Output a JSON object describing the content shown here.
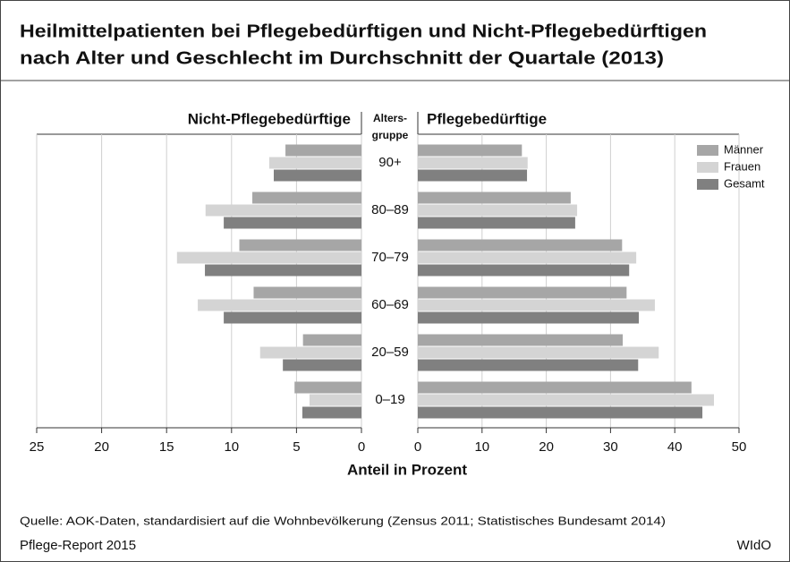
{
  "title": [
    "Heilmittelpatienten bei Pflegebedürftigen und Nicht-Pflegebedürftigen",
    "nach Alter und Geschlecht im Durchschnitt der Quartale (2013)"
  ],
  "category_header": [
    "Alters-",
    "gruppe"
  ],
  "categories": [
    "90+",
    "80–89",
    "70–79",
    "60–69",
    "20–59",
    "0–19"
  ],
  "xlabel": "Anteil in Prozent",
  "source": "Quelle: AOK-Daten, standardisiert auf die Wohnbevölkerung (Zensus 2011; Statistisches Bundesamt 2014)",
  "footer_left": "Pflege-Report 2015",
  "footer_right": "WIdO",
  "chart_data": [
    {
      "type": "bar",
      "orientation": "horizontal",
      "title": "Nicht-Pflegebedürftige",
      "xlim": [
        25,
        0
      ],
      "xticks": [
        25,
        20,
        15,
        10,
        5,
        0
      ],
      "grid": true,
      "series": [
        {
          "color": "#a6a6a6",
          "values": [
            5.85,
            8.4,
            9.4,
            8.3,
            4.5,
            5.15
          ]
        },
        {
          "color": "#d4d4d4",
          "values": [
            7.1,
            12.0,
            14.2,
            12.6,
            7.8,
            4.0
          ]
        },
        {
          "color": "#808080",
          "values": [
            6.75,
            10.6,
            12.05,
            10.6,
            6.05,
            4.55
          ]
        }
      ]
    },
    {
      "type": "bar",
      "orientation": "horizontal",
      "title": "Pflegebedürftige",
      "xlim": [
        0,
        50
      ],
      "xticks": [
        0,
        10,
        20,
        30,
        40,
        50
      ],
      "grid": true,
      "legend": "upper right",
      "series": [
        {
          "name": "Männer",
          "color": "#a6a6a6",
          "values": [
            16.2,
            23.8,
            31.8,
            32.5,
            31.9,
            42.6
          ]
        },
        {
          "name": "Frauen",
          "color": "#d4d4d4",
          "values": [
            17.1,
            24.8,
            34.0,
            36.9,
            37.5,
            46.1
          ]
        },
        {
          "name": "Gesamt",
          "color": "#808080",
          "values": [
            17.0,
            24.5,
            32.9,
            34.4,
            34.3,
            44.3
          ]
        }
      ]
    }
  ]
}
